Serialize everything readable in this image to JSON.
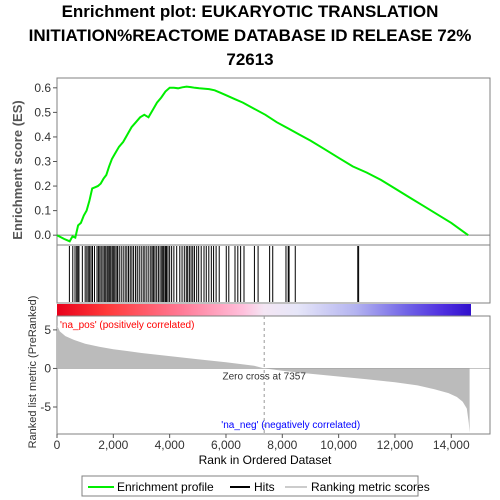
{
  "title_lines": [
    "Enrichment plot: EUKARYOTIC TRANSLATION",
    "INITIATION%REACTOME DATABASE ID RELEASE 72%",
    "72613"
  ],
  "colors": {
    "enrichment_line": "#00ee00",
    "hits": "#000000",
    "axis": "#808080",
    "zero_line": "#808080",
    "metric_fill": "#bbbbbb",
    "pos_label": "#ff0000",
    "neg_label": "#0000ff",
    "zero_cross_line": "#999999"
  },
  "chart_data": {
    "type": "line",
    "xlabel": "Rank in Ordered Dataset",
    "x_ticks": [
      0,
      2000,
      4000,
      6000,
      8000,
      10000,
      12000,
      14000
    ],
    "x_tick_labels": [
      "0",
      "2,000",
      "4,000",
      "6,000",
      "8,000",
      "10,000",
      "12,000",
      "14,000"
    ],
    "xlim": [
      0,
      14700
    ],
    "es_panel": {
      "ylabel": "Enrichment score (ES)",
      "ylim": [
        -0.04,
        0.64
      ],
      "y_ticks": [
        0.0,
        0.1,
        0.2,
        0.3,
        0.4,
        0.5,
        0.6
      ],
      "y_tick_labels": [
        "0.0",
        "0.1",
        "0.2",
        "0.3",
        "0.4",
        "0.5",
        "0.6"
      ],
      "series": [
        {
          "name": "Enrichment profile",
          "x": [
            0,
            250,
            450,
            550,
            650,
            750,
            850,
            950,
            1050,
            1150,
            1250,
            1350,
            1450,
            1550,
            1650,
            1750,
            1850,
            1950,
            2050,
            2200,
            2350,
            2500,
            2650,
            2800,
            2950,
            3100,
            3250,
            3400,
            3550,
            3700,
            3850,
            4000,
            4150,
            4300,
            4450,
            4600,
            4750,
            4900,
            5050,
            5200,
            5400,
            5600,
            5800,
            6000,
            6300,
            6600,
            7000,
            7400,
            7800,
            8200,
            8600,
            9000,
            9500,
            10000,
            10500,
            11000,
            11500,
            12000,
            12500,
            13000,
            13500,
            14000,
            14600
          ],
          "y": [
            0.0,
            -0.015,
            -0.025,
            -0.005,
            -0.01,
            0.04,
            0.05,
            0.08,
            0.1,
            0.14,
            0.19,
            0.195,
            0.2,
            0.21,
            0.23,
            0.245,
            0.28,
            0.31,
            0.33,
            0.36,
            0.38,
            0.41,
            0.44,
            0.46,
            0.48,
            0.49,
            0.48,
            0.51,
            0.54,
            0.56,
            0.585,
            0.6,
            0.6,
            0.598,
            0.602,
            0.605,
            0.603,
            0.6,
            0.598,
            0.597,
            0.595,
            0.59,
            0.58,
            0.57,
            0.555,
            0.54,
            0.515,
            0.49,
            0.46,
            0.435,
            0.41,
            0.385,
            0.35,
            0.315,
            0.28,
            0.255,
            0.225,
            0.19,
            0.155,
            0.12,
            0.085,
            0.05,
            0.0
          ]
        }
      ]
    },
    "hits_panel": {
      "series_name": "Hits",
      "hit_ranks": [
        440,
        560,
        640,
        700,
        740,
        780,
        900,
        1000,
        1060,
        1110,
        1160,
        1210,
        1260,
        1330,
        1420,
        1470,
        1520,
        1570,
        1630,
        1680,
        1730,
        1780,
        1820,
        1870,
        1910,
        1960,
        2000,
        2050,
        2100,
        2150,
        2210,
        2280,
        2350,
        2420,
        2480,
        2540,
        2600,
        2660,
        2720,
        2790,
        2850,
        2920,
        2990,
        3060,
        3120,
        3190,
        3260,
        3330,
        3380,
        3430,
        3480,
        3540,
        3600,
        3660,
        3720,
        3760,
        3800,
        3850,
        3890,
        3940,
        4000,
        4070,
        4150,
        4250,
        4360,
        4440,
        4520,
        4590,
        4640,
        4700,
        4760,
        4820,
        4880,
        4960,
        5030,
        5120,
        5220,
        5300,
        5390,
        5480,
        5560,
        5650,
        5760,
        6010,
        6100,
        6320,
        6420,
        6520,
        6640,
        7010,
        7140,
        7550,
        7660,
        8130,
        8210,
        8240,
        8460,
        10680,
        10710
      ]
    },
    "metric_panel": {
      "ylabel": "Ranked list metric (PreRanked)",
      "ylim": [
        -8.5,
        6.8
      ],
      "y_ticks": [
        -5,
        0,
        5
      ],
      "y_tick_labels": [
        "-5",
        "0",
        "5"
      ],
      "series_name": "Ranking metric scores",
      "x": [
        0,
        100,
        300,
        600,
        1000,
        1500,
        2000,
        3000,
        4000,
        5000,
        6000,
        7000,
        7357,
        8000,
        9000,
        10000,
        11000,
        12000,
        12800,
        13400,
        13900,
        14200,
        14400,
        14550,
        14620,
        14650
      ],
      "y": [
        5.6,
        4.8,
        4.2,
        3.7,
        3.2,
        2.8,
        2.5,
        2.0,
        1.6,
        1.2,
        0.8,
        0.35,
        0.0,
        -0.3,
        -0.7,
        -1.05,
        -1.4,
        -1.8,
        -2.2,
        -2.7,
        -3.2,
        -3.7,
        -4.3,
        -5.2,
        -7.0,
        -8.3
      ],
      "zero_cross_label": "Zero cross at 7357",
      "zero_cross_rank": 7357,
      "pos_label": "'na_pos' (positively correlated)",
      "neg_label": "'na_neg' (negatively correlated)"
    },
    "legend": {
      "placement": "bottom",
      "items": [
        {
          "label": "Enrichment profile",
          "color": "#00ee00"
        },
        {
          "label": "Hits",
          "color": "#000000"
        },
        {
          "label": "Ranking metric scores",
          "color": "#cccccc"
        }
      ]
    }
  }
}
